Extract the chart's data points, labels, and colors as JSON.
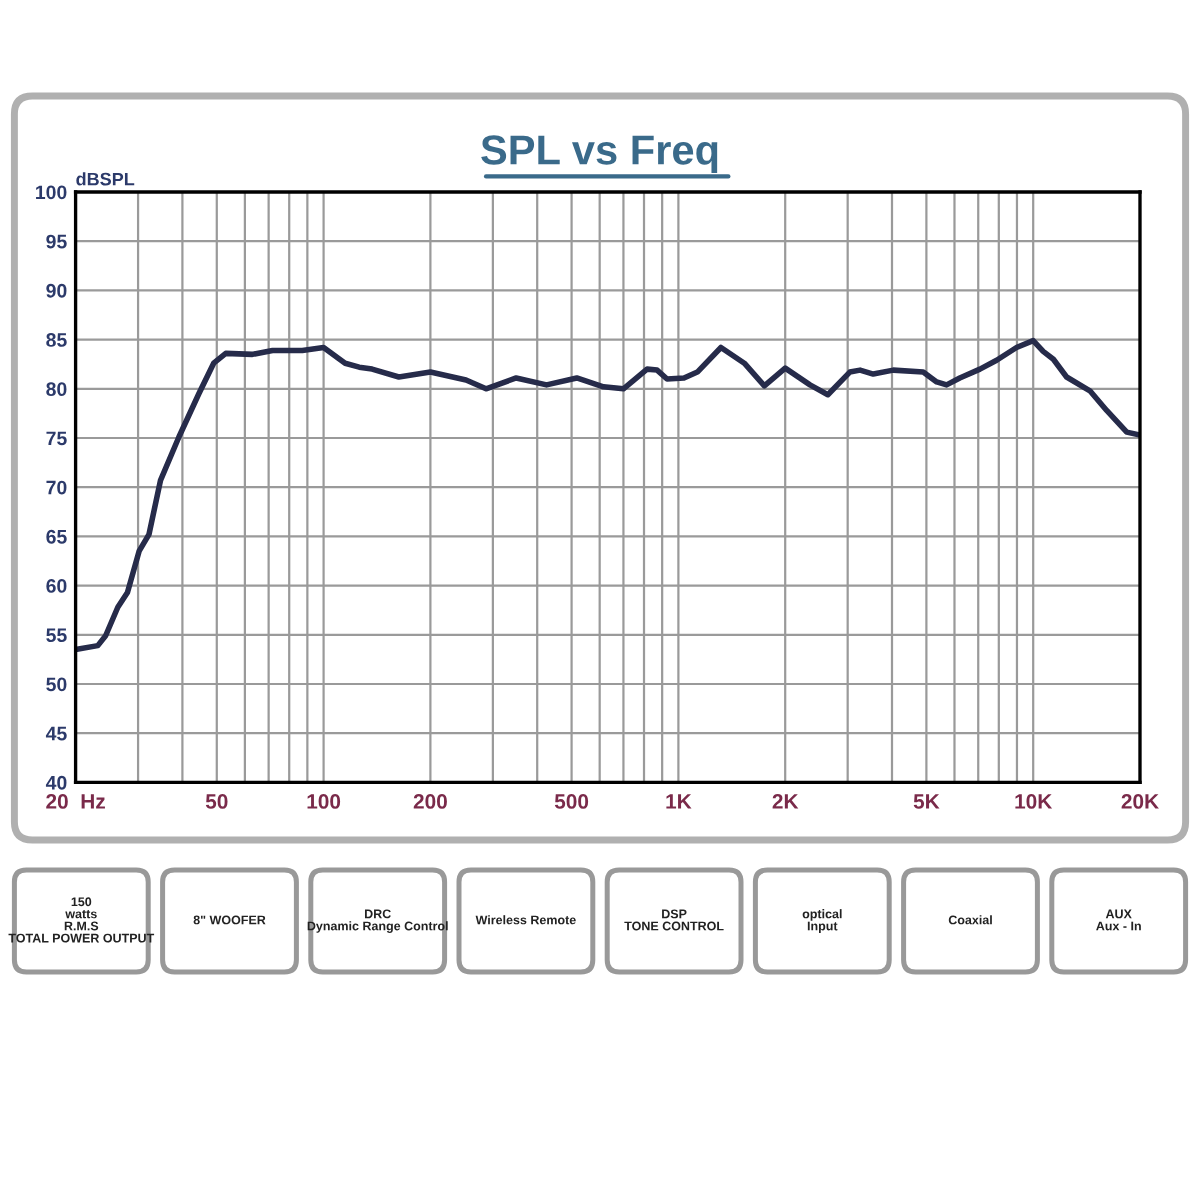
{
  "chart_data": {
    "type": "line",
    "title": "SPL vs Freq",
    "ylabel": "dBSPL",
    "series": [
      {
        "color": "#262b4a",
        "x": [
          20,
          23.1,
          24.3,
          26.3,
          28.0,
          30.2,
          32.2,
          34.7,
          39.1,
          44.5,
          49.0,
          53.0,
          63.0,
          71.8,
          87.1,
          100,
          115,
          126,
          137,
          163,
          200,
          252,
          287,
          349,
          425,
          517,
          615,
          700,
          816,
          871,
          929,
          1037,
          1131,
          1318,
          1534,
          1747,
          2000,
          2349,
          2638,
          3042,
          3251,
          3541,
          4034,
          4898,
          5345,
          5700,
          6210,
          7078,
          7887,
          8976,
          10000,
          10670,
          11400,
          12420,
          14450,
          16110,
          18350,
          20000
        ],
        "values": [
          53.5,
          53.9,
          54.9,
          57.8,
          59.3,
          63.5,
          65.2,
          70.7,
          75.1,
          79.5,
          82.6,
          83.6,
          83.5,
          83.9,
          83.9,
          84.2,
          82.6,
          82.2,
          82.0,
          81.2,
          81.7,
          80.9,
          80.0,
          81.1,
          80.4,
          81.1,
          80.2,
          80.0,
          82.0,
          81.9,
          81.0,
          81.1,
          81.7,
          84.2,
          82.6,
          80.3,
          82.1,
          80.4,
          79.4,
          81.7,
          81.9,
          81.5,
          81.9,
          81.7,
          80.7,
          80.4,
          81.1,
          82.0,
          82.9,
          84.2,
          84.9,
          83.8,
          83.0,
          81.2,
          79.8,
          77.8,
          75.6,
          75.3
        ]
      }
    ],
    "log": "x",
    "xlim": [
      20,
      20000
    ],
    "ylim": [
      40,
      100
    ],
    "xticks": [
      {
        "value": 20,
        "label": "20  Hz"
      },
      50,
      100,
      200,
      500,
      {
        "value": 1000,
        "label": "1K"
      },
      {
        "value": 2000,
        "label": "2K"
      },
      {
        "value": 5000,
        "label": "5K"
      },
      {
        "value": 10000,
        "label": "10K"
      },
      {
        "value": 20000,
        "label": "20K"
      }
    ],
    "yticks": [
      40,
      45,
      50,
      55,
      60,
      65,
      70,
      75,
      80,
      85,
      90,
      95,
      100
    ],
    "grid": true,
    "line_style": "solid",
    "marker": "none",
    "annotations": [
      "150\nwatts\nR.M.S\nTOTAL POWER OUTPUT",
      "8\" WOOFER",
      "DRC\nDynamic Range Control",
      "Wireless Remote",
      "DSP\nTONE CONTROL",
      "optical\nInput",
      "Coaxial",
      "AUX\nAux - In"
    ]
  }
}
